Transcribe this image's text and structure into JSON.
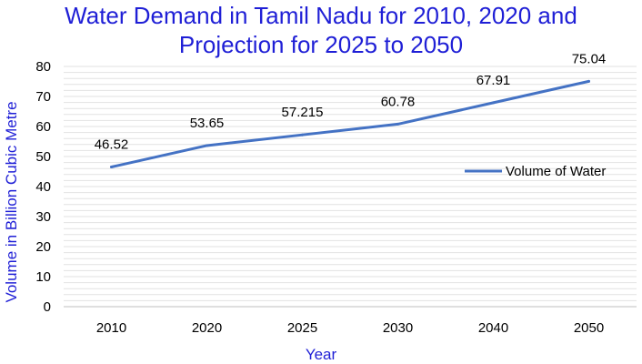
{
  "colors": {
    "series": "#4472c4",
    "title": "#1f1fd6"
  },
  "chart_data": {
    "type": "line",
    "title_lines": [
      "Water Demand in Tamil Nadu for 2010, 2020 and",
      "Projection for 2025 to 2050"
    ],
    "xlabel": "Year",
    "ylabel": "Volume in Billion Cubic Metre",
    "categories": [
      "2010",
      "2020",
      "2025",
      "2030",
      "2040",
      "2050"
    ],
    "series": [
      {
        "name": "Volume of Water",
        "values": [
          46.52,
          53.65,
          57.215,
          60.78,
          67.91,
          75.04
        ],
        "labels": [
          "46.52",
          "53.65",
          "57.215",
          "60.78",
          "67.91",
          "75.04"
        ]
      }
    ],
    "ylim": [
      0,
      80
    ],
    "yticks": [
      0,
      10,
      20,
      30,
      40,
      50,
      60,
      70,
      80
    ],
    "minor_grid_step": 2,
    "grid": true,
    "legend_position": "right"
  }
}
